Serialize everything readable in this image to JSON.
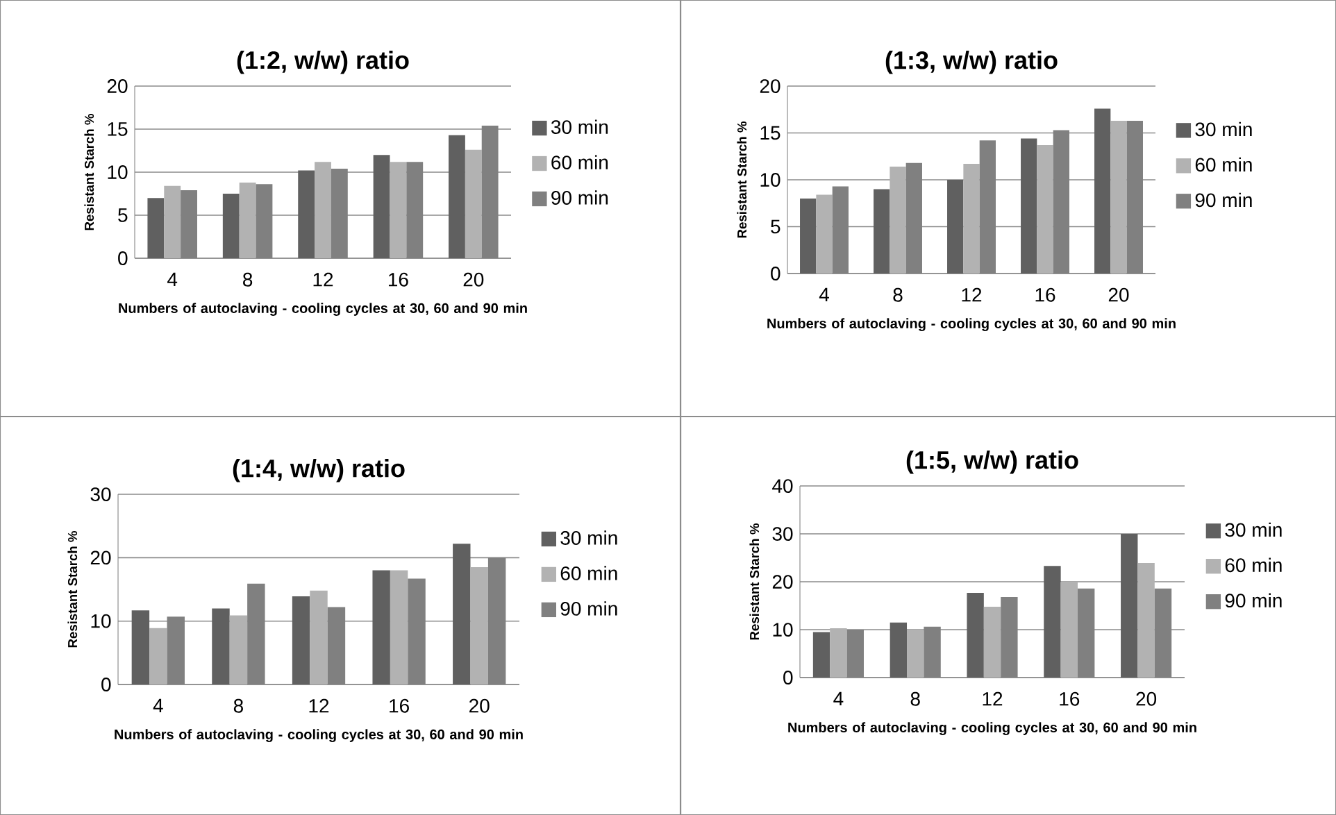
{
  "chart_data": [
    {
      "type": "bar",
      "title": "(1:2, w/w) ratio",
      "xlabel": "Numbers of autoclaving - cooling cycles at 30, 60 and 90 min",
      "ylabel": "Resistant Starch %",
      "categories": [
        "4",
        "8",
        "12",
        "16",
        "20"
      ],
      "ylim": [
        0,
        20
      ],
      "yticks": [
        0,
        5,
        10,
        15,
        20
      ],
      "grid": "y",
      "legend": "right",
      "series": [
        {
          "name": "30 min",
          "color": "#606060",
          "values": [
            7.0,
            7.5,
            10.2,
            12.0,
            14.3
          ]
        },
        {
          "name": "60 min",
          "color": "#b2b2b2",
          "values": [
            8.4,
            8.8,
            11.2,
            11.2,
            12.6
          ]
        },
        {
          "name": "90 min",
          "color": "#808080",
          "values": [
            7.9,
            8.6,
            10.4,
            11.2,
            15.4
          ]
        }
      ]
    },
    {
      "type": "bar",
      "title": "(1:3, w/w) ratio",
      "xlabel": "Numbers of autoclaving - cooling cycles at 30, 60 and 90 min",
      "ylabel": "Resistant Starch %",
      "categories": [
        "4",
        "8",
        "12",
        "16",
        "20"
      ],
      "ylim": [
        0,
        20
      ],
      "yticks": [
        0,
        5,
        10,
        15,
        20
      ],
      "grid": "y",
      "legend": "right",
      "series": [
        {
          "name": "30 min",
          "color": "#606060",
          "values": [
            8.0,
            9.0,
            10.0,
            14.4,
            17.6
          ]
        },
        {
          "name": "60 min",
          "color": "#b2b2b2",
          "values": [
            8.4,
            11.4,
            11.7,
            13.7,
            16.3
          ]
        },
        {
          "name": "90 min",
          "color": "#808080",
          "values": [
            9.3,
            11.8,
            14.2,
            15.3,
            16.3
          ]
        }
      ]
    },
    {
      "type": "bar",
      "title": "(1:4, w/w) ratio",
      "xlabel": "Numbers of autoclaving - cooling cycles at 30, 60 and 90 min",
      "ylabel": "Resistant Starch %",
      "categories": [
        "4",
        "8",
        "12",
        "16",
        "20"
      ],
      "ylim": [
        0,
        30
      ],
      "yticks": [
        0,
        10,
        20,
        30
      ],
      "grid": "y",
      "legend": "right",
      "series": [
        {
          "name": "30 min",
          "color": "#606060",
          "values": [
            11.7,
            12.0,
            13.9,
            18.0,
            22.2
          ]
        },
        {
          "name": "60 min",
          "color": "#b2b2b2",
          "values": [
            8.9,
            10.9,
            14.8,
            18.0,
            18.5
          ]
        },
        {
          "name": "90 min",
          "color": "#808080",
          "values": [
            10.7,
            15.9,
            12.2,
            16.7,
            20.0
          ]
        }
      ]
    },
    {
      "type": "bar",
      "title": "(1:5, w/w) ratio",
      "xlabel": "Numbers of autoclaving - cooling cycles at 30, 60 and 90 min",
      "ylabel": "Resistant Starch %",
      "categories": [
        "4",
        "8",
        "12",
        "16",
        "20"
      ],
      "ylim": [
        0,
        40
      ],
      "yticks": [
        0,
        10,
        20,
        30,
        40
      ],
      "grid": "y",
      "legend": "right",
      "series": [
        {
          "name": "30 min",
          "color": "#606060",
          "values": [
            9.5,
            11.5,
            17.7,
            23.3,
            30.0
          ]
        },
        {
          "name": "60 min",
          "color": "#b2b2b2",
          "values": [
            10.3,
            10.0,
            14.8,
            20.0,
            23.9
          ]
        },
        {
          "name": "90 min",
          "color": "#808080",
          "values": [
            10.0,
            10.6,
            16.8,
            18.6,
            18.6
          ]
        }
      ]
    }
  ]
}
